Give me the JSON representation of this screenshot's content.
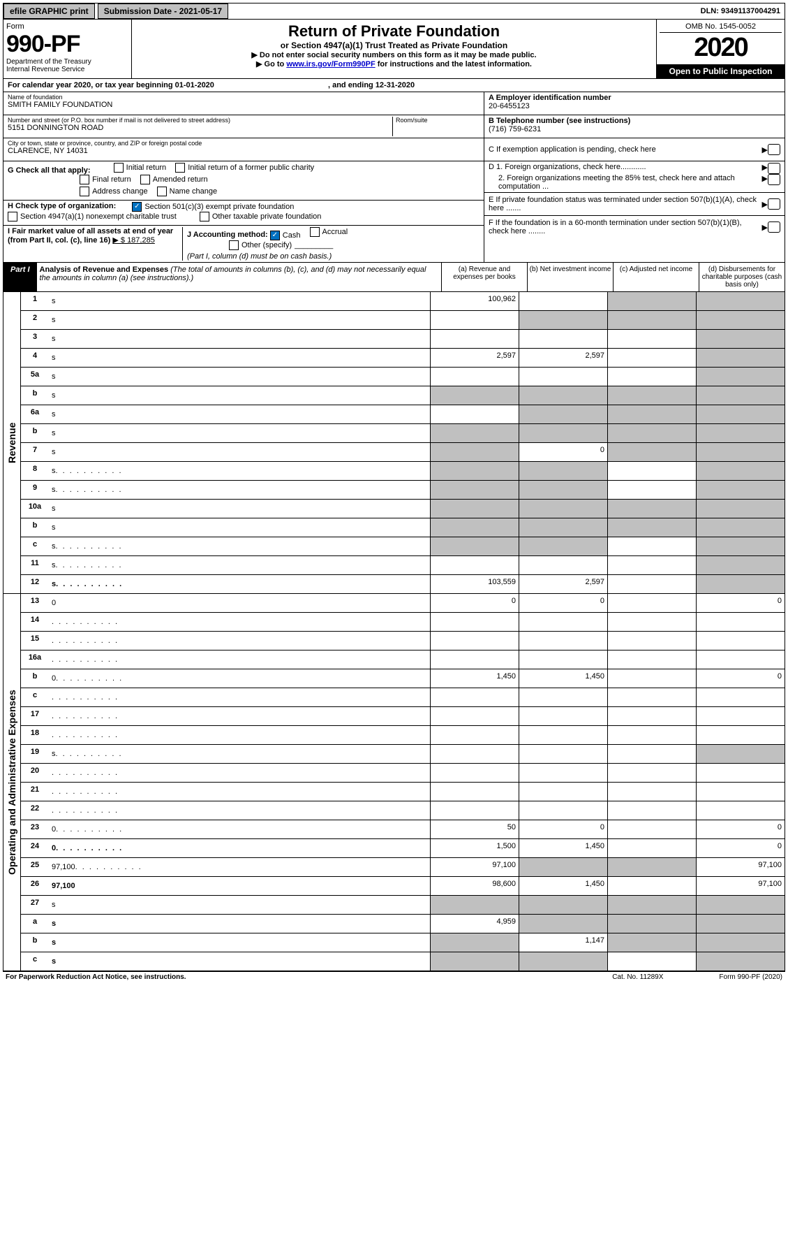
{
  "topbar": {
    "efile": "efile GRAPHIC print",
    "submission": "Submission Date - 2021-05-17",
    "dln": "DLN: 93491137004291"
  },
  "header": {
    "form_word": "Form",
    "form_number": "990-PF",
    "dept": "Department of the Treasury\nInternal Revenue Service",
    "title": "Return of Private Foundation",
    "subtitle": "or Section 4947(a)(1) Trust Treated as Private Foundation",
    "note1": "▶ Do not enter social security numbers on this form as it may be made public.",
    "note2_pre": "▶ Go to ",
    "note2_link": "www.irs.gov/Form990PF",
    "note2_post": " for instructions and the latest information.",
    "omb": "OMB No. 1545-0052",
    "year": "2020",
    "open": "Open to Public Inspection"
  },
  "calendar": {
    "text": "For calendar year 2020, or tax year beginning 01-01-2020",
    "ending": ", and ending 12-31-2020"
  },
  "foundation": {
    "name_lbl": "Name of foundation",
    "name": "SMITH FAMILY FOUNDATION",
    "addr_lbl": "Number and street (or P.O. box number if mail is not delivered to street address)",
    "addr": "5151 DONNINGTON ROAD",
    "room_lbl": "Room/suite",
    "city_lbl": "City or town, state or province, country, and ZIP or foreign postal code",
    "city": "CLARENCE, NY  14031"
  },
  "right_panel": {
    "a_lbl": "A Employer identification number",
    "a_val": "20-6455123",
    "b_lbl": "B Telephone number (see instructions)",
    "b_val": "(716) 759-6231",
    "c_lbl": "C If exemption application is pending, check here",
    "d1": "D 1. Foreign organizations, check here............",
    "d2": "2. Foreign organizations meeting the 85% test, check here and attach computation ...",
    "e_lbl": "E  If private foundation status was terminated under section 507(b)(1)(A), check here .......",
    "f_lbl": "F  If the foundation is in a 60-month termination under section 507(b)(1)(B), check here ........"
  },
  "section_g": {
    "label": "G Check all that apply:",
    "opts": [
      "Initial return",
      "Initial return of a former public charity",
      "Final return",
      "Amended return",
      "Address change",
      "Name change"
    ]
  },
  "section_h": {
    "label": "H Check type of organization:",
    "opt1": "Section 501(c)(3) exempt private foundation",
    "opt2": "Section 4947(a)(1) nonexempt charitable trust",
    "opt3": "Other taxable private foundation"
  },
  "section_i": {
    "label": "I Fair market value of all assets at end of year (from Part II, col. (c), line 16)",
    "val": "▶ $  187,285"
  },
  "section_j": {
    "label": "J Accounting method:",
    "cash": "Cash",
    "accrual": "Accrual",
    "other": "Other (specify)",
    "note": "(Part I, column (d) must be on cash basis.)"
  },
  "part1": {
    "tag": "Part I",
    "title": "Analysis of Revenue and Expenses",
    "note": " (The total of amounts in columns (b), (c), and (d) may not necessarily equal the amounts in column (a) (see instructions).)",
    "cols": {
      "a": "(a)  Revenue and expenses per books",
      "b": "(b)  Net investment income",
      "c": "(c)  Adjusted net income",
      "d": "(d)  Disbursements for charitable purposes (cash basis only)"
    }
  },
  "lines": {
    "revenue": [
      {
        "n": "1",
        "d": "s",
        "a": "100,962",
        "b": "",
        "c": "s"
      },
      {
        "n": "2",
        "d": "s",
        "a": "",
        "b": "s",
        "c": "s"
      },
      {
        "n": "3",
        "d": "s",
        "a": "",
        "b": "",
        "c": ""
      },
      {
        "n": "4",
        "d": "s",
        "a": "2,597",
        "b": "2,597",
        "c": ""
      },
      {
        "n": "5a",
        "d": "s",
        "a": "",
        "b": "",
        "c": ""
      },
      {
        "n": "b",
        "d": "s",
        "a": "s",
        "b": "s",
        "c": "s"
      },
      {
        "n": "6a",
        "d": "s",
        "a": "",
        "b": "s",
        "c": "s"
      },
      {
        "n": "b",
        "d": "s",
        "a": "s",
        "b": "s",
        "c": "s"
      },
      {
        "n": "7",
        "d": "s",
        "a": "s",
        "b": "0",
        "c": "s"
      },
      {
        "n": "8",
        "d": "s",
        "a": "s",
        "b": "s",
        "c": "",
        "dots": true
      },
      {
        "n": "9",
        "d": "s",
        "a": "s",
        "b": "s",
        "c": "",
        "dots": true
      },
      {
        "n": "10a",
        "d": "s",
        "a": "s",
        "b": "s",
        "c": "s"
      },
      {
        "n": "b",
        "d": "s",
        "a": "s",
        "b": "s",
        "c": "s"
      },
      {
        "n": "c",
        "d": "s",
        "a": "s",
        "b": "s",
        "c": "",
        "dots": true
      },
      {
        "n": "11",
        "d": "s",
        "a": "",
        "b": "",
        "c": "",
        "dots": true
      },
      {
        "n": "12",
        "d": "s",
        "a": "103,559",
        "b": "2,597",
        "c": "",
        "bold": true,
        "dots": true
      }
    ],
    "expenses": [
      {
        "n": "13",
        "d": "0",
        "a": "0",
        "b": "0",
        "c": ""
      },
      {
        "n": "14",
        "d": "",
        "a": "",
        "b": "",
        "c": "",
        "dots": true
      },
      {
        "n": "15",
        "d": "",
        "a": "",
        "b": "",
        "c": "",
        "dots": true
      },
      {
        "n": "16a",
        "d": "",
        "a": "",
        "b": "",
        "c": "",
        "dots": true
      },
      {
        "n": "b",
        "d": "0",
        "a": "1,450",
        "b": "1,450",
        "c": "",
        "dots": true
      },
      {
        "n": "c",
        "d": "",
        "a": "",
        "b": "",
        "c": "",
        "dots": true
      },
      {
        "n": "17",
        "d": "",
        "a": "",
        "b": "",
        "c": "",
        "dots": true
      },
      {
        "n": "18",
        "d": "",
        "a": "",
        "b": "",
        "c": "",
        "dots": true
      },
      {
        "n": "19",
        "d": "s",
        "a": "",
        "b": "",
        "c": "",
        "dots": true
      },
      {
        "n": "20",
        "d": "",
        "a": "",
        "b": "",
        "c": "",
        "dots": true
      },
      {
        "n": "21",
        "d": "",
        "a": "",
        "b": "",
        "c": "",
        "dots": true
      },
      {
        "n": "22",
        "d": "",
        "a": "",
        "b": "",
        "c": "",
        "dots": true
      },
      {
        "n": "23",
        "d": "0",
        "a": "50",
        "b": "0",
        "c": "",
        "dots": true
      },
      {
        "n": "24",
        "d": "0",
        "a": "1,500",
        "b": "1,450",
        "c": "",
        "bold": true,
        "dots": true
      },
      {
        "n": "25",
        "d": "97,100",
        "a": "97,100",
        "b": "s",
        "c": "s",
        "dots": true
      },
      {
        "n": "26",
        "d": "97,100",
        "a": "98,600",
        "b": "1,450",
        "c": "",
        "bold": true
      },
      {
        "n": "27",
        "d": "s",
        "a": "s",
        "b": "s",
        "c": "s"
      },
      {
        "n": "a",
        "d": "s",
        "a": "4,959",
        "b": "s",
        "c": "s",
        "bold": true
      },
      {
        "n": "b",
        "d": "s",
        "a": "s",
        "b": "1,147",
        "c": "s",
        "bold": true
      },
      {
        "n": "c",
        "d": "s",
        "a": "s",
        "b": "s",
        "c": "",
        "bold": true
      }
    ]
  },
  "side_labels": {
    "revenue": "Revenue",
    "expenses": "Operating and Administrative Expenses"
  },
  "footer": {
    "left": "For Paperwork Reduction Act Notice, see instructions.",
    "mid": "Cat. No. 11289X",
    "right": "Form 990-PF (2020)"
  }
}
